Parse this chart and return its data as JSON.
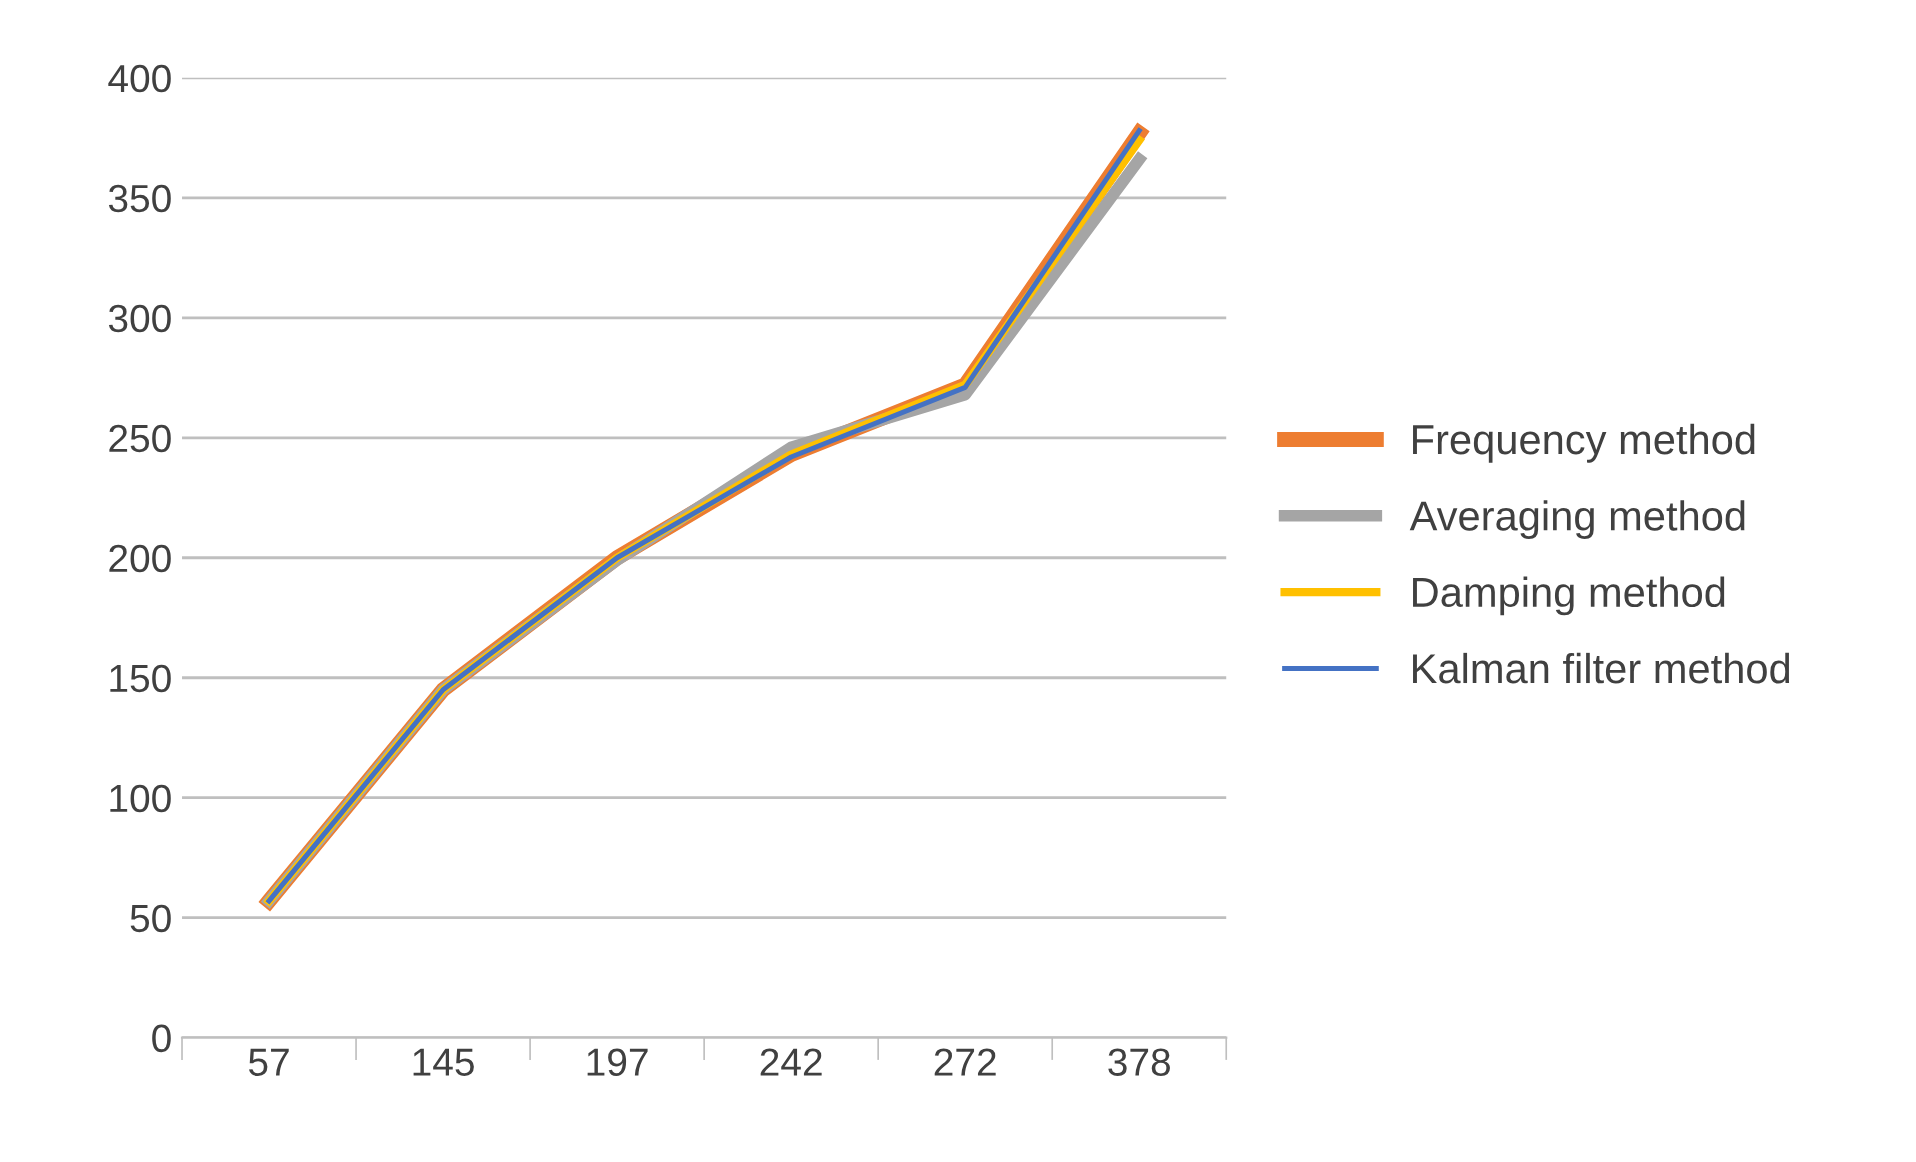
{
  "chart_data": {
    "type": "line",
    "categories": [
      "57",
      "145",
      "197",
      "242",
      "272",
      "378"
    ],
    "series": [
      {
        "name": "Frequency method",
        "color": "#ed7d31",
        "values": [
          57,
          145,
          200,
          243,
          272,
          377
        ]
      },
      {
        "name": "Averaging method",
        "color": "#a5a5a5",
        "values": [
          57,
          145,
          199,
          246,
          268,
          366
        ]
      },
      {
        "name": "Damping method",
        "color": "#ffc000",
        "values": [
          57,
          145,
          200,
          243,
          272,
          374
        ]
      },
      {
        "name": "Kalman filter method",
        "color": "#4472c4",
        "values": [
          57,
          145,
          200,
          242,
          271,
          378
        ]
      }
    ],
    "ylim": [
      0,
      400
    ],
    "yticks": [
      0,
      50,
      100,
      150,
      200,
      250,
      300,
      350,
      400
    ],
    "grid": "y",
    "legend": "right",
    "marker": "none",
    "line_style": "solid"
  }
}
